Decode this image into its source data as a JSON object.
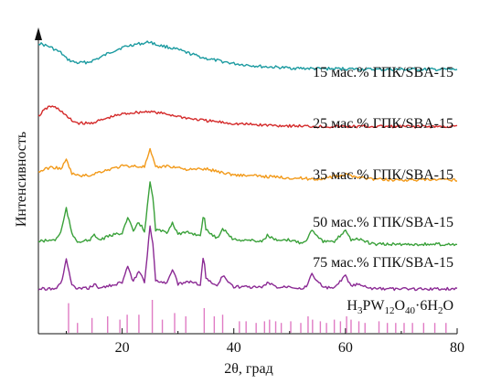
{
  "chart_data": {
    "type": "line",
    "xlabel": "2θ, град",
    "ylabel": "Интенсивность",
    "xlim": [
      5,
      80
    ],
    "x_ticks": [
      "20",
      "40",
      "60",
      "80"
    ],
    "grid": false,
    "series": [
      {
        "name": "15 мас.% ГПК/SBA-15",
        "color": "#1a9aa0",
        "x": [
          5,
          7,
          9,
          10,
          11,
          12,
          14,
          16,
          18,
          20,
          22,
          24,
          25,
          26,
          28,
          30,
          32,
          35,
          40,
          45,
          50,
          55,
          60,
          65,
          70,
          75,
          80
        ],
        "y": [
          0.66,
          0.61,
          0.53,
          0.45,
          0.41,
          0.39,
          0.4,
          0.46,
          0.54,
          0.6,
          0.64,
          0.66,
          0.68,
          0.64,
          0.61,
          0.57,
          0.52,
          0.45,
          0.38,
          0.34,
          0.32,
          0.31,
          0.31,
          0.3,
          0.3,
          0.3,
          0.3
        ]
      },
      {
        "name": "25 мас.% ГПК/SBA-15",
        "color": "#d42a2a",
        "x": [
          5,
          6,
          7,
          8,
          9,
          10,
          11,
          12,
          14,
          16,
          18,
          20,
          22,
          24,
          25,
          26,
          28,
          30,
          32,
          35,
          40,
          45,
          50,
          55,
          60,
          65,
          70,
          75,
          80
        ],
        "y": [
          0.36,
          0.44,
          0.5,
          0.48,
          0.44,
          0.36,
          0.3,
          0.27,
          0.26,
          0.3,
          0.35,
          0.39,
          0.41,
          0.42,
          0.43,
          0.41,
          0.39,
          0.36,
          0.33,
          0.3,
          0.26,
          0.24,
          0.23,
          0.22,
          0.22,
          0.22,
          0.22,
          0.22,
          0.22
        ]
      },
      {
        "name": "35 мас.% ГПК/SBA-15",
        "color": "#f29a1a",
        "x": [
          5,
          7,
          8,
          9,
          10,
          11,
          12,
          14,
          16,
          18,
          20,
          22,
          24,
          25,
          26,
          28,
          30,
          32,
          35,
          40,
          45,
          50,
          55,
          60,
          65,
          70,
          75,
          80
        ],
        "y": [
          0.3,
          0.36,
          0.36,
          0.34,
          0.46,
          0.28,
          0.25,
          0.25,
          0.3,
          0.34,
          0.38,
          0.38,
          0.37,
          0.6,
          0.36,
          0.38,
          0.36,
          0.33,
          0.34,
          0.26,
          0.24,
          0.22,
          0.2,
          0.26,
          0.2,
          0.19,
          0.19,
          0.19
        ]
      },
      {
        "name": "50 мас.% ГПК/SBA-15",
        "color": "#3aa13a",
        "x": [
          5,
          8,
          9,
          10,
          11,
          12,
          14,
          15,
          16,
          18,
          20,
          21,
          22,
          23,
          24,
          25,
          25.5,
          26,
          28,
          29,
          30,
          32,
          34,
          34.6,
          35,
          37,
          38,
          40,
          42,
          45,
          46,
          48,
          50,
          52,
          53,
          54,
          56,
          58,
          60,
          61,
          62,
          65,
          70,
          75,
          80
        ],
        "y": [
          0.1,
          0.12,
          0.22,
          0.55,
          0.2,
          0.1,
          0.11,
          0.18,
          0.12,
          0.18,
          0.22,
          0.42,
          0.24,
          0.36,
          0.24,
          0.9,
          0.7,
          0.26,
          0.22,
          0.36,
          0.2,
          0.22,
          0.18,
          0.48,
          0.26,
          0.14,
          0.28,
          0.12,
          0.12,
          0.1,
          0.18,
          0.1,
          0.12,
          0.08,
          0.12,
          0.26,
          0.1,
          0.09,
          0.26,
          0.12,
          0.14,
          0.06,
          0.06,
          0.06,
          0.06
        ]
      },
      {
        "name": "75 мас.% ГПК/SBA-15",
        "color": "#8b2a94",
        "x": [
          5,
          8,
          9,
          10,
          11,
          12,
          14,
          15,
          16,
          18,
          20,
          21,
          22,
          23,
          24,
          25,
          25.5,
          26,
          28,
          29,
          30,
          32,
          34,
          34.6,
          35,
          37,
          38,
          40,
          42,
          45,
          46,
          48,
          50,
          52,
          53,
          54,
          56,
          58,
          60,
          61,
          62,
          65,
          70,
          75,
          80
        ],
        "y": [
          0.0,
          0.01,
          0.06,
          0.4,
          0.05,
          0.0,
          0.01,
          0.06,
          0.01,
          0.05,
          0.09,
          0.3,
          0.1,
          0.24,
          0.1,
          0.85,
          0.6,
          0.12,
          0.08,
          0.28,
          0.06,
          0.1,
          0.06,
          0.48,
          0.14,
          0.04,
          0.18,
          0.03,
          0.03,
          0.02,
          0.08,
          0.02,
          0.04,
          0.01,
          0.03,
          0.2,
          0.02,
          0.01,
          0.18,
          0.04,
          0.06,
          0.0,
          0.0,
          0.0,
          0.0
        ]
      }
    ],
    "reference": {
      "label_parts": [
        "H",
        "3",
        "PW",
        "12",
        "O",
        "40",
        "·6H",
        "2",
        "O"
      ],
      "color": "#e07bc4",
      "peaks": [
        {
          "x": 10.4,
          "h": 0.9
        },
        {
          "x": 12.0,
          "h": 0.3
        },
        {
          "x": 14.6,
          "h": 0.45
        },
        {
          "x": 17.4,
          "h": 0.5
        },
        {
          "x": 19.6,
          "h": 0.4
        },
        {
          "x": 20.9,
          "h": 0.55
        },
        {
          "x": 23.0,
          "h": 0.55
        },
        {
          "x": 25.4,
          "h": 1.0
        },
        {
          "x": 27.2,
          "h": 0.4
        },
        {
          "x": 29.4,
          "h": 0.6
        },
        {
          "x": 31.4,
          "h": 0.5
        },
        {
          "x": 34.7,
          "h": 0.75
        },
        {
          "x": 36.5,
          "h": 0.5
        },
        {
          "x": 38.0,
          "h": 0.55
        },
        {
          "x": 41.0,
          "h": 0.35
        },
        {
          "x": 42.2,
          "h": 0.35
        },
        {
          "x": 44.0,
          "h": 0.3
        },
        {
          "x": 45.5,
          "h": 0.35
        },
        {
          "x": 46.4,
          "h": 0.4
        },
        {
          "x": 47.5,
          "h": 0.35
        },
        {
          "x": 48.5,
          "h": 0.3
        },
        {
          "x": 50.2,
          "h": 0.35
        },
        {
          "x": 52.0,
          "h": 0.3
        },
        {
          "x": 53.3,
          "h": 0.5
        },
        {
          "x": 54.1,
          "h": 0.4
        },
        {
          "x": 55.5,
          "h": 0.35
        },
        {
          "x": 56.6,
          "h": 0.3
        },
        {
          "x": 58.0,
          "h": 0.4
        },
        {
          "x": 59.1,
          "h": 0.35
        },
        {
          "x": 60.2,
          "h": 0.5
        },
        {
          "x": 61.0,
          "h": 0.4
        },
        {
          "x": 62.4,
          "h": 0.35
        },
        {
          "x": 63.5,
          "h": 0.3
        },
        {
          "x": 66.0,
          "h": 0.35
        },
        {
          "x": 67.5,
          "h": 0.3
        },
        {
          "x": 69.0,
          "h": 0.3
        },
        {
          "x": 70.5,
          "h": 0.3
        },
        {
          "x": 72.0,
          "h": 0.3
        },
        {
          "x": 74.0,
          "h": 0.3
        },
        {
          "x": 76.0,
          "h": 0.3
        },
        {
          "x": 78.0,
          "h": 0.3
        }
      ]
    }
  }
}
